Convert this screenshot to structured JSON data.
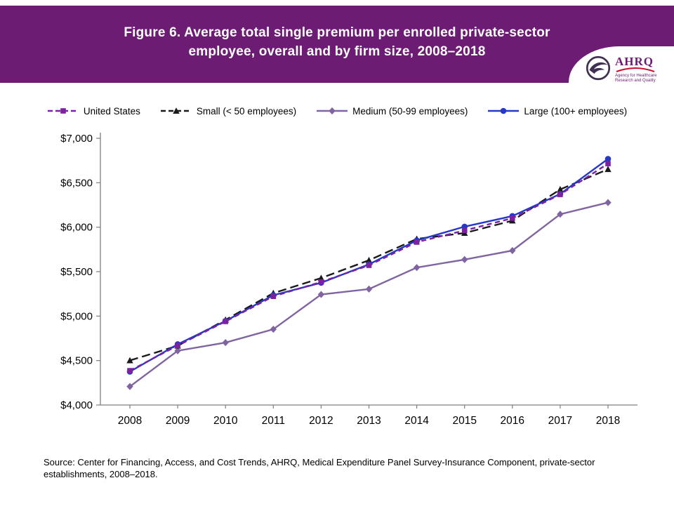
{
  "header": {
    "band_color": "#6C1D73",
    "title_line1": "Figure 6. Average total single premium per enrolled private-sector",
    "title_line2": "employee, overall and by firm size, 2008–2018",
    "logo": {
      "acronym": "AHRQ",
      "subtitle": "Agency for Healthcare Research and Quality"
    }
  },
  "source": {
    "text": "Source: Center for Financing, Access, and Cost Trends, AHRQ, Medical Expenditure Panel Survey-Insurance Component, private-sector establishments, 2008–2018."
  },
  "chart_data": {
    "type": "line",
    "title": "Figure 6. Average total single premium per enrolled private-sector employee, overall and by firm size, 2008–2018",
    "xlabel": "",
    "ylabel": "",
    "x": [
      2008,
      2009,
      2010,
      2011,
      2012,
      2013,
      2014,
      2015,
      2016,
      2017,
      2018
    ],
    "ylim": [
      4000,
      7000
    ],
    "ytick_step": 500,
    "ytick_prefix": "$",
    "grid": false,
    "legend_position": "top",
    "axis_color": "#7f7f7f",
    "series": [
      {
        "name": "United States",
        "color": "#7C21A1",
        "dash": "7 5",
        "marker": "square",
        "values": [
          4386,
          4669,
          4940,
          5222,
          5384,
          5571,
          5832,
          5963,
          6101,
          6368,
          6715
        ]
      },
      {
        "name": "Small (< 50 employees)",
        "color": "#1A1A1A",
        "dash": "12 6",
        "marker": "triangle",
        "values": [
          4501,
          4666,
          4958,
          5258,
          5428,
          5628,
          5868,
          5934,
          6073,
          6425,
          6652
        ]
      },
      {
        "name": "Medium (50-99 employees)",
        "color": "#8064A2",
        "dash": null,
        "marker": "diamond",
        "values": [
          4208,
          4610,
          4702,
          4852,
          5243,
          5304,
          5546,
          5636,
          5737,
          6146,
          6277
        ]
      },
      {
        "name": "Large (100+ employees)",
        "color": "#2539C8",
        "dash": null,
        "marker": "circle",
        "values": [
          4375,
          4683,
          4945,
          5235,
          5375,
          5582,
          5851,
          6006,
          6125,
          6374,
          6768
        ]
      }
    ]
  }
}
